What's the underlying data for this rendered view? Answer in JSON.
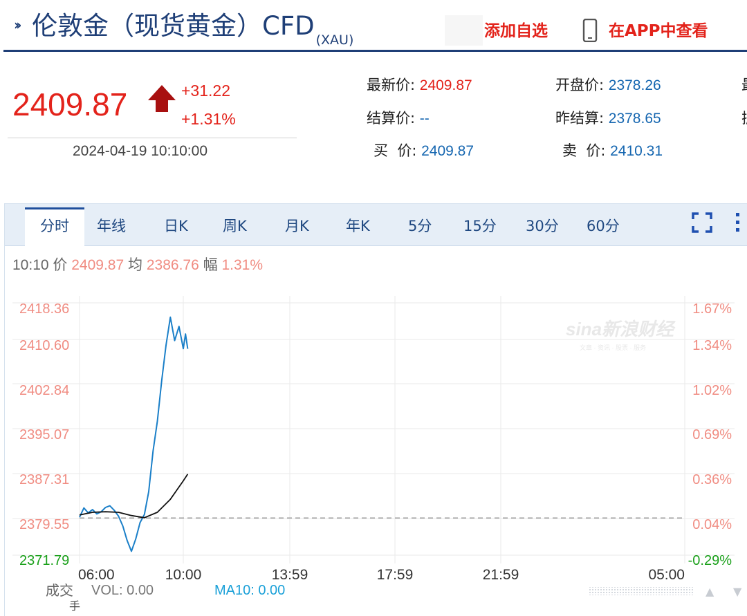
{
  "header": {
    "title": "伦敦金（现货黄金）CFD",
    "title_sub": "(XAU)",
    "add_watch_label": "添加自选",
    "view_in_app_label": "在APP中查看",
    "accent_color": "#e3231b",
    "title_color": "#1f3f77"
  },
  "quote": {
    "price": "2409.87",
    "change": "+31.22",
    "change_pct": "+1.31%",
    "datetime": "2024-04-19 10:10:00",
    "latest_label": "最新价:",
    "latest_value": "2409.87",
    "open_label": "开盘价:",
    "open_value": "2378.26",
    "settle_label": "结算价:",
    "settle_value": "--",
    "prev_settle_label": "昨结算:",
    "prev_settle_value": "2378.65",
    "bid_label": "买  价:",
    "bid_value": "2409.87",
    "ask_label": "卖  价:",
    "ask_value": "2410.31",
    "cutoff_col_chars": [
      "最",
      "振"
    ],
    "up_color": "#e3231b",
    "value_color": "#1566b0"
  },
  "tabs": [
    "分时",
    "年线",
    "日K",
    "周K",
    "月K",
    "年K",
    "5分",
    "15分",
    "30分",
    "60分"
  ],
  "active_tab": "分时",
  "info_line": {
    "time": "10:10",
    "price_label": "价",
    "price_value": "2409.87",
    "avg_label": "均",
    "avg_value": "2386.76",
    "amp_label": "幅",
    "amp_value": "1.31%"
  },
  "watermark": {
    "brand": "sina新浪财经",
    "tagline": "文章 · 资讯 · 股票 · 服务"
  },
  "volume_bar": {
    "label": "成交",
    "unit": "手",
    "vol_text": "VOL: 0.00",
    "ma_text": "MA10: 0.00"
  },
  "chart_data": {
    "type": "line",
    "title": "",
    "xlabel": "",
    "ylabel": "",
    "x_ticks": [
      "06:00",
      "10:00",
      "13:59",
      "17:59",
      "21:59",
      "05:00"
    ],
    "y_ticks_left": [
      "2418.36",
      "2410.60",
      "2402.84",
      "2395.07",
      "2387.31",
      "2379.55",
      "2371.79"
    ],
    "y_ticks_right": [
      "1.67%",
      "1.34%",
      "1.02%",
      "0.69%",
      "0.36%",
      "0.04%",
      "-0.29%"
    ],
    "ylim": [
      2371.79,
      2418.36
    ],
    "reference_price": 2378.65,
    "grid": true,
    "series": [
      {
        "name": "价",
        "color": "#1a7fc8",
        "x": [
          "06:00",
          "06:10",
          "06:20",
          "06:30",
          "06:40",
          "06:50",
          "07:00",
          "07:10",
          "07:20",
          "07:30",
          "07:40",
          "07:50",
          "08:00",
          "08:10",
          "08:20",
          "08:30",
          "08:40",
          "08:50",
          "09:00",
          "09:10",
          "09:20",
          "09:30",
          "09:40",
          "09:50",
          "10:00",
          "10:05",
          "10:10"
        ],
        "values": [
          2378.8,
          2380.5,
          2379.6,
          2380.2,
          2379.4,
          2379.8,
          2380.6,
          2380.9,
          2380.1,
          2379.0,
          2377.2,
          2374.5,
          2372.5,
          2374.8,
          2377.8,
          2379.3,
          2383.5,
          2391.0,
          2396.5,
          2404.0,
          2410.5,
          2415.7,
          2411.4,
          2414.0,
          2409.9,
          2412.6,
          2409.87
        ]
      },
      {
        "name": "均",
        "color": "#111111",
        "x": [
          "06:00",
          "06:30",
          "07:00",
          "07:30",
          "08:00",
          "08:30",
          "09:00",
          "09:30",
          "10:00",
          "10:10"
        ],
        "values": [
          2379.2,
          2379.7,
          2379.8,
          2379.7,
          2379.1,
          2378.7,
          2379.7,
          2382.1,
          2385.5,
          2386.76
        ]
      }
    ]
  }
}
